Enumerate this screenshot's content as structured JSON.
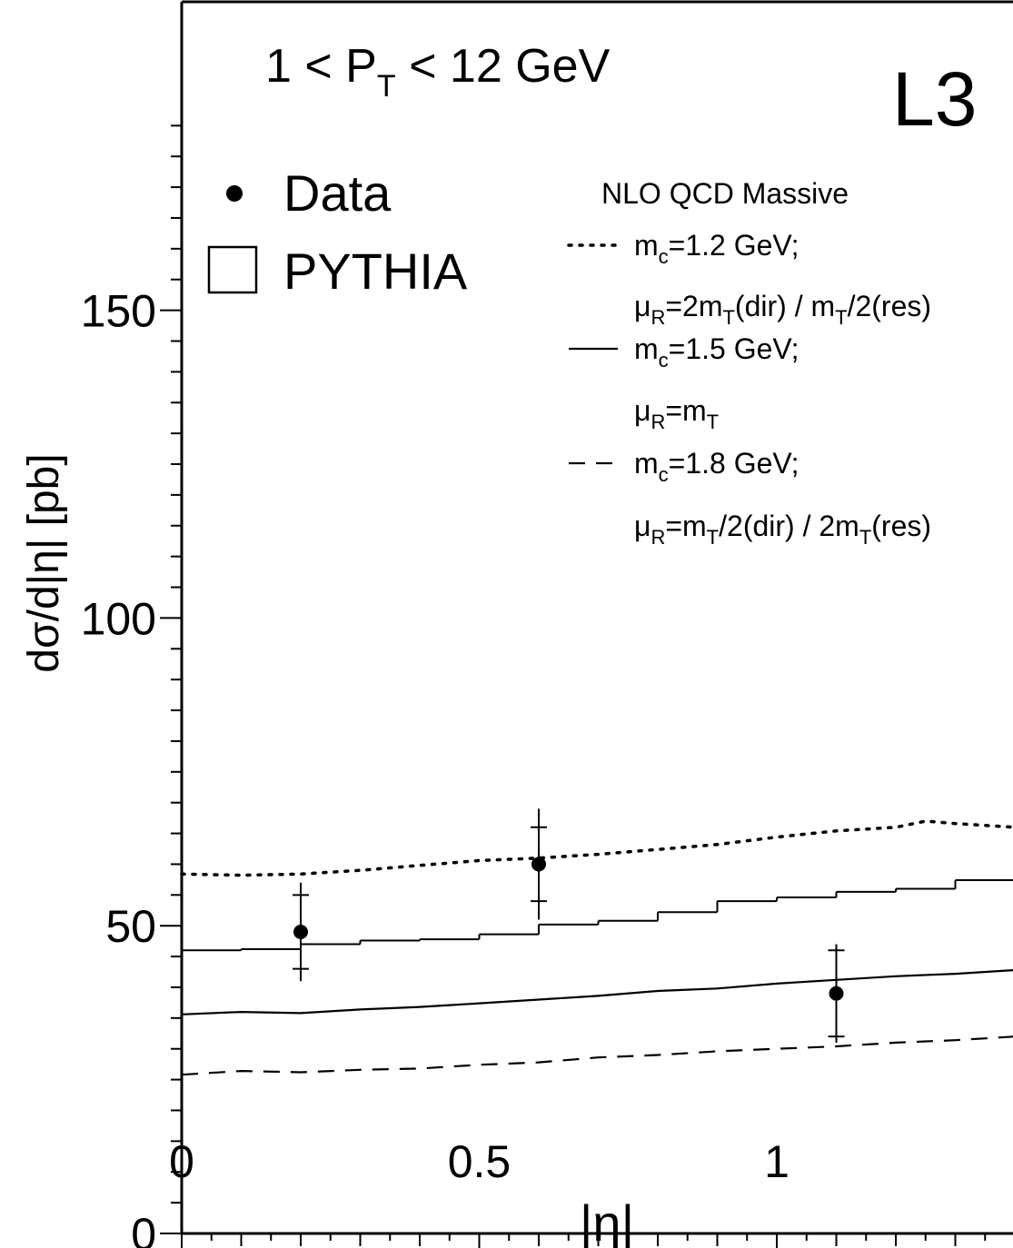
{
  "chart_data": {
    "type": "line",
    "experiment_label": "L3",
    "pt_range": {
      "prefix": "1 < P",
      "sub": "T",
      "suffix": " < 12 GeV"
    },
    "xlabel": "|η|",
    "ylabel": "dσ/d|η| [pb]",
    "xlim": [
      0,
      1.4
    ],
    "ylim": [
      0,
      180
    ],
    "xticks": [
      0,
      0.5,
      1
    ],
    "xtick_labels": [
      "0",
      "0.5",
      "1"
    ],
    "yticks": [
      0,
      50,
      100,
      150
    ],
    "ytick_labels": [
      "0",
      "50",
      "100",
      "150"
    ],
    "legend_left": {
      "data_label": "Data",
      "pythia_label": "PYTHIA"
    },
    "legend_right": {
      "title": "NLO QCD Massive",
      "entries": [
        {
          "style": "dotted",
          "line1": [
            [
              "m",
              ""
            ],
            [
              "c",
              "sub"
            ],
            [
              "=1.2 GeV;",
              ""
            ]
          ],
          "line2": [
            [
              "μ",
              ""
            ],
            [
              "R",
              "sub"
            ],
            [
              "=2m",
              ""
            ],
            [
              "T",
              "sub"
            ],
            [
              "(dir) / m",
              ""
            ],
            [
              "T",
              "sub"
            ],
            [
              "/2(res)",
              ""
            ]
          ]
        },
        {
          "style": "solid",
          "line1": [
            [
              "m",
              ""
            ],
            [
              "c",
              "sub"
            ],
            [
              "=1.5 GeV;",
              ""
            ]
          ],
          "line2": [
            [
              "μ",
              ""
            ],
            [
              "R",
              "sub"
            ],
            [
              "=m",
              ""
            ],
            [
              "T",
              "sub"
            ]
          ]
        },
        {
          "style": "dashed",
          "line1": [
            [
              "m",
              ""
            ],
            [
              "c",
              "sub"
            ],
            [
              "=1.8 GeV;",
              ""
            ]
          ],
          "line2": [
            [
              "μ",
              ""
            ],
            [
              "R",
              "sub"
            ],
            [
              "=m",
              ""
            ],
            [
              "T",
              "sub"
            ],
            [
              "/2(dir) / 2m",
              ""
            ],
            [
              "T",
              "sub"
            ],
            [
              "(res)",
              ""
            ]
          ]
        }
      ]
    },
    "series": [
      {
        "name": "Data",
        "kind": "points",
        "x": [
          0.2,
          0.6,
          1.1
        ],
        "y": [
          49,
          60,
          39
        ],
        "err_stat": [
          6,
          6,
          7
        ],
        "err_tot": [
          8,
          9,
          8
        ]
      },
      {
        "name": "PYTHIA",
        "kind": "step",
        "edges": [
          0,
          0.1,
          0.2,
          0.3,
          0.4,
          0.5,
          0.6,
          0.7,
          0.8,
          0.9,
          1.0,
          1.1,
          1.2,
          1.3,
          1.4
        ],
        "values": [
          46,
          46.2,
          47,
          47.6,
          47.8,
          48.6,
          50.2,
          50.8,
          52.2,
          54.0,
          54.6,
          55.5,
          56.0,
          57.4
        ]
      },
      {
        "name": "m_c=1.2 GeV",
        "kind": "curve",
        "dash": "dotted",
        "x": [
          0,
          0.1,
          0.2,
          0.3,
          0.4,
          0.5,
          0.6,
          0.7,
          0.8,
          0.9,
          1.0,
          1.1,
          1.2,
          1.25,
          1.3,
          1.4
        ],
        "y": [
          58.4,
          58.2,
          58.4,
          59.0,
          59.8,
          60.6,
          61.0,
          61.6,
          62.4,
          63.2,
          64.4,
          65.4,
          66.0,
          67.0,
          66.6,
          66.0
        ]
      },
      {
        "name": "m_c=1.5 GeV",
        "kind": "curve",
        "dash": "solid",
        "x": [
          0,
          0.1,
          0.2,
          0.3,
          0.4,
          0.5,
          0.6,
          0.7,
          0.8,
          0.9,
          1.0,
          1.1,
          1.2,
          1.3,
          1.4
        ],
        "y": [
          35.6,
          36.0,
          35.8,
          36.4,
          36.8,
          37.4,
          38.0,
          38.6,
          39.4,
          39.8,
          40.6,
          41.2,
          41.8,
          42.2,
          42.8
        ]
      },
      {
        "name": "m_c=1.8 GeV",
        "kind": "curve",
        "dash": "dashed",
        "x": [
          0,
          0.1,
          0.2,
          0.3,
          0.4,
          0.5,
          0.6,
          0.7,
          0.8,
          0.9,
          1.0,
          1.1,
          1.2,
          1.3,
          1.4
        ],
        "y": [
          25.8,
          26.4,
          26.2,
          26.6,
          26.8,
          27.4,
          27.8,
          28.6,
          29.0,
          29.6,
          30.0,
          30.4,
          31.0,
          31.4,
          32.0
        ]
      }
    ],
    "grid": false,
    "legend_placement": "top"
  }
}
